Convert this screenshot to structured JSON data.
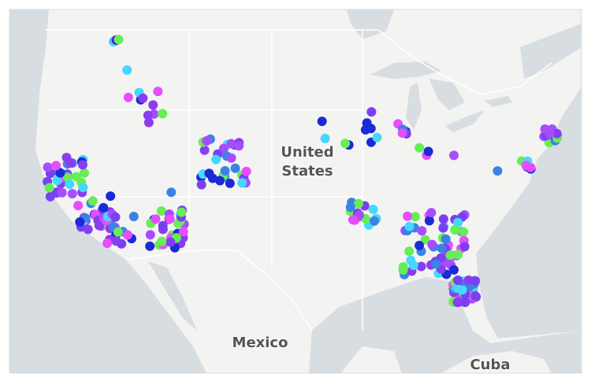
{
  "map": {
    "labels": [
      "United States",
      "Mexico",
      "Cuba"
    ]
  }
}
